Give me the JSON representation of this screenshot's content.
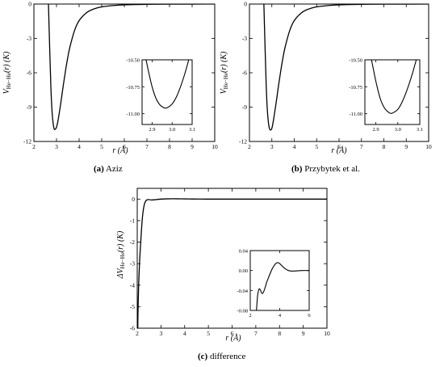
{
  "captions": [
    {
      "letter": "(a)",
      "text": "Aziz"
    },
    {
      "letter": "(b)",
      "text": "Przybytek et al."
    },
    {
      "letter": "(c)",
      "text": "difference"
    }
  ],
  "chart_data": [
    {
      "type": "line",
      "id": "a",
      "xlabel": "r (Å)",
      "ylabel": "V_He−He(r) (K)",
      "xlim": [
        2,
        10
      ],
      "ylim": [
        -12,
        0
      ],
      "xticks": [
        2,
        3,
        4,
        5,
        6,
        7,
        8,
        9,
        10
      ],
      "yticks": [
        -12,
        -9,
        -6,
        -3,
        0
      ],
      "series": [
        {
          "x": [
            2.64,
            2.7,
            2.75,
            2.8,
            2.85,
            2.9,
            2.96,
            3.0,
            3.05,
            3.1,
            3.2,
            3.3,
            3.4,
            3.5,
            3.6,
            3.8,
            4.0,
            4.3,
            4.6,
            5.0,
            5.5,
            6.0,
            7.0,
            8.0,
            10.0
          ],
          "y": [
            0.3,
            -4.0,
            -7.2,
            -9.3,
            -10.4,
            -10.92,
            -10.9,
            -10.75,
            -10.35,
            -9.8,
            -8.5,
            -7.1,
            -5.8,
            -4.65,
            -3.7,
            -2.3,
            -1.45,
            -0.8,
            -0.47,
            -0.25,
            -0.13,
            -0.07,
            -0.025,
            -0.01,
            0.0
          ]
        }
      ],
      "inset": {
        "xlim": [
          2.85,
          3.1
        ],
        "ylim": [
          -11.1,
          -10.5
        ],
        "xticks": [
          2.9,
          3.0,
          3.1
        ],
        "yticks": [
          -11.0,
          -10.75,
          -10.5
        ],
        "xtick_labels": [
          "2.9",
          "3.0",
          "3.1"
        ],
        "ytick_labels": [
          "-11.00",
          "-10.75",
          "-10.50"
        ],
        "series": [
          {
            "x": [
              2.87,
              2.88,
              2.9,
              2.92,
              2.94,
              2.96,
              2.97,
              2.98,
              3.0,
              3.02,
              3.04,
              3.06,
              3.08,
              3.1
            ],
            "y": [
              -10.5,
              -10.59,
              -10.75,
              -10.86,
              -10.92,
              -10.945,
              -10.948,
              -10.94,
              -10.91,
              -10.85,
              -10.76,
              -10.65,
              -10.52,
              -10.36
            ]
          }
        ]
      }
    },
    {
      "type": "line",
      "id": "b",
      "xlabel": "r (Å)",
      "ylabel": "V_He−He(r) (K)",
      "xlim": [
        2,
        10
      ],
      "ylim": [
        -12,
        0
      ],
      "xticks": [
        2,
        3,
        4,
        5,
        6,
        7,
        8,
        9,
        10
      ],
      "yticks": [
        -12,
        -9,
        -6,
        -3,
        0
      ],
      "series": [
        {
          "x": [
            2.64,
            2.7,
            2.75,
            2.8,
            2.85,
            2.9,
            2.96,
            3.0,
            3.05,
            3.1,
            3.2,
            3.3,
            3.4,
            3.5,
            3.6,
            3.8,
            4.0,
            4.3,
            4.6,
            5.0,
            5.5,
            6.0,
            7.0,
            8.0,
            10.0
          ],
          "y": [
            0.3,
            -4.0,
            -7.2,
            -9.3,
            -10.4,
            -10.92,
            -10.99,
            -10.85,
            -10.4,
            -9.8,
            -8.5,
            -7.1,
            -5.8,
            -4.65,
            -3.7,
            -2.3,
            -1.45,
            -0.8,
            -0.47,
            -0.25,
            -0.13,
            -0.07,
            -0.025,
            -0.01,
            0.0
          ]
        }
      ],
      "inset": {
        "xlim": [
          2.85,
          3.1
        ],
        "ylim": [
          -11.1,
          -10.5
        ],
        "xticks": [
          2.9,
          3.0,
          3.1
        ],
        "yticks": [
          -11.0,
          -10.75,
          -10.5
        ],
        "xtick_labels": [
          "2.9",
          "3.0",
          "3.1"
        ],
        "ytick_labels": [
          "-11.00",
          "-10.75",
          "-10.50"
        ],
        "series": [
          {
            "x": [
              2.88,
              2.89,
              2.9,
              2.92,
              2.94,
              2.96,
              2.97,
              2.98,
              3.0,
              3.02,
              3.04,
              3.06,
              3.08,
              3.1
            ],
            "y": [
              -10.5,
              -10.6,
              -10.7,
              -10.86,
              -10.95,
              -10.99,
              -10.997,
              -10.99,
              -10.96,
              -10.89,
              -10.79,
              -10.67,
              -10.53,
              -10.37
            ]
          }
        ]
      }
    },
    {
      "type": "line",
      "id": "c",
      "xlabel": "r (Å)",
      "ylabel": "ΔV_He−He(r) (K)",
      "xlim": [
        2,
        10
      ],
      "ylim": [
        -6,
        0.5
      ],
      "xticks": [
        2,
        3,
        4,
        5,
        6,
        7,
        8,
        9,
        10
      ],
      "yticks": [
        -6,
        -5,
        -4,
        -3,
        -2,
        -1,
        0
      ],
      "series": [
        {
          "x": [
            2.03,
            2.06,
            2.1,
            2.15,
            2.2,
            2.25,
            2.3,
            2.35,
            2.4,
            2.5,
            2.6,
            2.8,
            3.0,
            3.2,
            3.5,
            3.8,
            4.0,
            4.3,
            4.6,
            5.0,
            6.0,
            7.0,
            8.0,
            10.0
          ],
          "y": [
            -5.4,
            -4.0,
            -2.9,
            -1.95,
            -1.1,
            -0.55,
            -0.25,
            -0.1,
            -0.04,
            -0.02,
            -0.04,
            -0.02,
            0.0,
            0.01,
            0.015,
            0.012,
            0.01,
            0.005,
            0.002,
            0.0,
            0.0,
            0.0,
            0.0,
            0.0
          ]
        }
      ],
      "inset": {
        "xlim": [
          2,
          6
        ],
        "ylim": [
          -0.08,
          0.04
        ],
        "xticks": [
          2,
          4,
          6
        ],
        "yticks": [
          -0.08,
          -0.04,
          0.0,
          0.04
        ],
        "xtick_labels": [
          "2",
          "4",
          "6"
        ],
        "ytick_labels": [
          "-0.08",
          "-0.04",
          "0.00",
          "0.04"
        ],
        "series": [
          {
            "x": [
              2.42,
              2.5,
              2.6,
              2.7,
              2.8,
              2.9,
              3.0,
              3.1,
              3.2,
              3.35,
              3.5,
              3.7,
              3.85,
              4.0,
              4.2,
              4.4,
              4.6,
              4.8,
              5.0,
              5.5,
              6.0
            ],
            "y": [
              -0.08,
              -0.05,
              -0.037,
              -0.04,
              -0.046,
              -0.043,
              -0.035,
              -0.025,
              -0.017,
              -0.006,
              0.004,
              0.013,
              0.016,
              0.014,
              0.008,
              0.003,
              0.0,
              -0.001,
              -0.001,
              0.0,
              0.0
            ]
          }
        ]
      }
    }
  ]
}
